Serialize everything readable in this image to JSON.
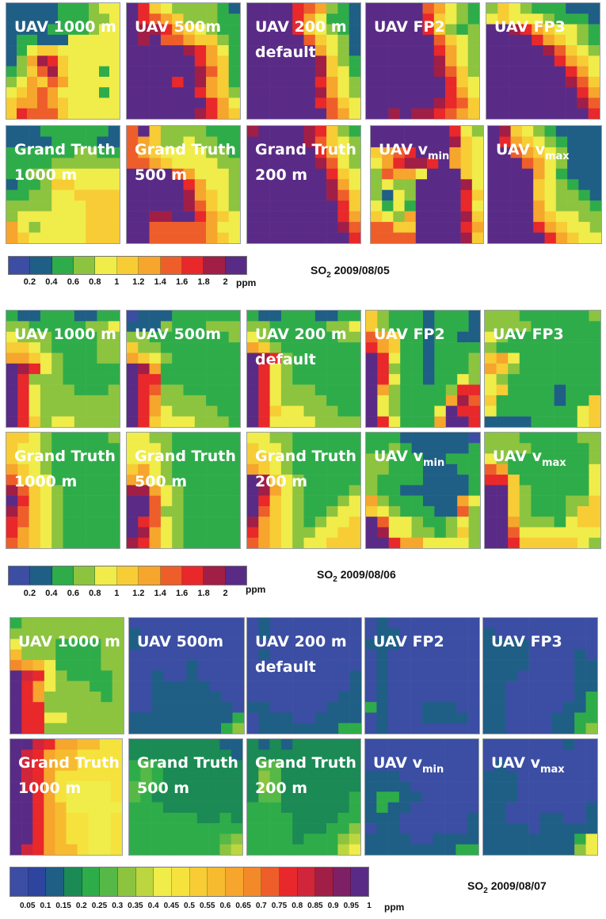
{
  "figure": {
    "sections": [
      {
        "title_species": "SO",
        "title_sub": "2",
        "title_date": "2009/08/05",
        "colorbar_unit": "ppm"
      },
      {
        "title_species": "SO",
        "title_sub": "2",
        "title_date": "2009/08/06",
        "colorbar_unit": "ppm"
      },
      {
        "title_species": "SO",
        "title_sub": "2",
        "title_date": "2009/08/07",
        "colorbar_unit": "ppm"
      }
    ]
  },
  "chart_data": [
    {
      "type": "heatmap",
      "title": "SO2 2009/08/05",
      "colorbar": {
        "unit": "ppm",
        "ticks": [
          "0.2",
          "0.4",
          "0.6",
          "0.8",
          "1",
          "1.2",
          "1.4",
          "1.6",
          "1.8",
          "2"
        ],
        "colors": [
          "#3b4ea3",
          "#1f5f86",
          "#2fac4a",
          "#8cc43f",
          "#f0ec4a",
          "#f7cc35",
          "#f6a52d",
          "#ee5e2a",
          "#e8282a",
          "#a11e46",
          "#5a2b86"
        ]
      },
      "panels": [
        {
          "label": "UAV 1000 m",
          "grid": [
            "11111222344",
            "11111222334",
            "11112222344",
            "12211144444",
            "12455444444",
            "13698544444",
            "23579544424",
            "34657644444",
            "45676444424",
            "56676544444",
            "58777544444"
          ]
        },
        {
          "label": "UAV 500m",
          "grid": [
            "A854333321",
            "A876533322",
            "A998654322",
            "A9A7765532",
            "AAAAA98642",
            "AAAAAA8652",
            "AAAAAA9752",
            "AAAA8A9652",
            "AAAAAA8653",
            "AAAAAAA864",
            "AAAAAA9865"
          ]
        },
        {
          "label": "UAV 200 m\ndefault",
          "grid": [
            "AAAA876321",
            "AAAA864221",
            "AAAA854321",
            "AAAAA75431",
            "AAAAAA6431",
            "AAAAAA9532",
            "AAAAAA9542",
            "AAAAAA8643",
            "AAAAAA9643",
            "AAAAAA8754",
            "AAAAAAA764"
          ]
        },
        {
          "label": "UAV FP2",
          "grid": [
            "AAAAA76432",
            "AAAAA85432",
            "AAAAA85323",
            "AAAAAA7543",
            "AAAAAA8643",
            "AAAAAA9643",
            "AAAAAA9753",
            "AAAAAAA854",
            "AAAAAAA864",
            "AAAAAA9875",
            "AA9A998765"
          ]
        },
        {
          "label": "UAV FP3",
          "grid": [
            "3543222111",
            "4544432221",
            "AA98654432",
            "AAAA865432",
            "AAAAA97543",
            "AAAAAA8654",
            "AAAAAAA864",
            "AAAAAAA975",
            "AAAAAAAA86",
            "AAAAAAAA97",
            "AAAAAAAAA8"
          ]
        },
        {
          "label": "Grand Truth\n1000 m",
          "grid": [
            "1112222221",
            "1111222211",
            "2222223322",
            "2222333333",
            "2233444444",
            "1223554444",
            "2233445555",
            "3333444555",
            "3444444555",
            "6434444555",
            "6544444555"
          ]
        },
        {
          "label": "Grand Truth\n500 m",
          "grid": [
            "7A53333222",
            "7653343322",
            "7654444332",
            "7765444433",
            "AAAA764443",
            "AAAAA86443",
            "AAAAA96543",
            "AAAAA97543",
            "AA99AA8654",
            "AA77777644",
            "AA77777654"
          ]
        },
        {
          "label": "Grand Truth\n200 m",
          "grid": [
            "9AAAA98532",
            "AAAAA97543",
            "AAAAAA8643",
            "AAAAAA9743",
            "AAAAAAA854",
            "AAAAAAA964",
            "AAAAAAA975",
            "AAAAAAAA85",
            "AAAAAAAA86",
            "AAAAAAAA97",
            "AAAAAAAAA8"
          ]
        },
        {
          "label": "UAV vmin",
          "grid": [
            "AAAAAAA843",
            "AAAAAAA954",
            "5678AAA654",
            "468998A654",
            "37664AAA54",
            "3433AAAA94",
            "3143AAAA85",
            "4242AAAA84",
            "5436AAAA95",
            "7755AAAA86",
            "7777AAAA95"
          ]
        },
        {
          "label": "UAV vmax",
          "grid": [
            "A954321111",
            "A865432111",
            "AA76543111",
            "AAA7643111",
            "AAAA642111",
            "AAAA543211",
            "AAAA543321",
            "AAAA643332",
            "AAAA654433",
            "AAAA865443",
            "AAAAA86544"
          ]
        }
      ]
    },
    {
      "type": "heatmap",
      "title": "SO2 2009/08/06",
      "colorbar": {
        "unit": "ppm",
        "ticks": [
          "0.2",
          "0.4",
          "0.6",
          "0.8",
          "1",
          "1.2",
          "1.4",
          "1.6",
          "1.8",
          "2"
        ],
        "colors": [
          "#3b4ea3",
          "#1f5f86",
          "#2fac4a",
          "#8cc43f",
          "#f0ec4a",
          "#f7cc35",
          "#f6a52d",
          "#ee5e2a",
          "#e8282a",
          "#a11e46",
          "#5a2b86"
        ]
      },
      "panels": [
        {
          "label": "UAV 1000 m",
          "grid": [
            "2112221122",
            "3322222334",
            "4333222233",
            "5543222233",
            "6654322233",
            "A984322222",
            "A833322222",
            "A843332223",
            "A843333333",
            "A843333333",
            "A853443333"
          ]
        },
        {
          "label": "UAV 500m",
          "grid": [
            "0111222222",
            "1113222333",
            "3322222223",
            "5332222222",
            "6543222222",
            "A962222222",
            "A882222222",
            "A873322222",
            "A863333222",
            "A864333322",
            "A854443332"
          ]
        },
        {
          "label": "UAV 200 m\ndefault",
          "grid": [
            "2112221122",
            "3322222334",
            "4322222233",
            "6532222222",
            "A983222222",
            "A843222222",
            "A843222222",
            "A843332222",
            "A843333222",
            "A854433322",
            "A844443333"
          ]
        },
        {
          "label": "UAV FP2",
          "grid": [
            "5322212221",
            "5322212221",
            "7652212211",
            "8652212222",
            "A842212223",
            "A832212223",
            "A842212243",
            "A632222388",
            "A432222697",
            "A432224A88",
            "A842226AA8"
          ]
        },
        {
          "label": "UAV FP3",
          "grid": [
            "3332222223",
            "3333222222",
            "4322222222",
            "3222222222",
            "5642222222",
            "6532222222",
            "4322222222",
            "4522221222",
            "5222221225",
            "4222222245",
            "1111222245"
          ]
        },
        {
          "label": "Grand Truth\n1000 m",
          "grid": [
            "5543222223",
            "5443222222",
            "5443222222",
            "6543222222",
            "7544222222",
            "9754322222",
            "A854322222",
            "9754322222",
            "8754322222",
            "8654322222",
            "7654322222"
          ]
        },
        {
          "label": "Grand Truth\n500 m",
          "grid": [
            "4433222222",
            "4443222222",
            "4443222222",
            "5643222222",
            "6643222222",
            "9964322222",
            "AA74322222",
            "AA73322222",
            "A874322222",
            "A964322222",
            "9864322222"
          ]
        },
        {
          "label": "Grand Truth\n200 m",
          "grid": [
            "4433222222",
            "5443222222",
            "5543222222",
            "6543222222",
            "A954322222",
            "A964322223",
            "A854322234",
            "A754322344",
            "9654323445",
            "8654334455",
            "7654344555"
          ]
        },
        {
          "label": "UAV vmin",
          "grid": [
            "2221111110",
            "2232111112",
            "3322211222",
            "3322211122",
            "3222211112",
            "3221111112",
            "6322211164",
            "5432221173",
            "A744322343",
            "A944332353",
            "AA86644443"
          ]
        },
        {
          "label": "UAV vmax",
          "grid": [
            "3332222233",
            "3333222223",
            "4322222223",
            "7622222224",
            "8852222224",
            "AA53222224",
            "AA53222335",
            "AA53222355",
            "AA63332455",
            "AA74444444",
            "AA85555543"
          ]
        }
      ]
    },
    {
      "type": "heatmap",
      "title": "SO2 2009/08/07",
      "colorbar": {
        "unit": "ppm",
        "ticks": [
          "0.05",
          "0.1",
          "0.15",
          "0.2",
          "0.25",
          "0.3",
          "0.35",
          "0.4",
          "0.45",
          "0.5",
          "0.55",
          "0.6",
          "0.65",
          "0.7",
          "0.75",
          "0.8",
          "0.85",
          "0.9",
          "0.95",
          "1"
        ],
        "colors": [
          "#3b4ea3",
          "#2e45a0",
          "#1f5f86",
          "#1b8a55",
          "#2fac4a",
          "#56b847",
          "#8cc43f",
          "#bcd640",
          "#f0ec4a",
          "#f5e23c",
          "#f7cc35",
          "#f7bb30",
          "#f6a52d",
          "#f38a2a",
          "#ee5e2a",
          "#e8282a",
          "#d0253a",
          "#a11e46",
          "#7d2065",
          "#5a2b86"
        ]
      },
      "panels": [
        {
          "label": "UAV 1000 m",
          "grid": [
            "4666666666",
            "6666666666",
            "8666444466",
            "B666444466",
            "DCB8444466",
            "JGF8644446",
            "JFC8666446",
            "JFC6666646",
            "JFF6666666",
            "JFF8866666",
            "JFF6666666"
          ]
        },
        {
          "label": "UAV 500m",
          "grid": [
            "0000000000",
            "2000000000",
            "2000000000",
            "0000000000",
            "0000020000",
            "0020020000",
            "0022222000",
            "0022222200",
            "0022222220",
            "2222222224",
            "2222222246"
          ]
        },
        {
          "label": "UAV 200 m\ndefault",
          "grid": [
            "0200000000",
            "0200000000",
            "0000000000",
            "0200000000",
            "0000000000",
            "0000000002",
            "0000000002",
            "0000000022",
            "2200000222",
            "0222002222",
            "0222222244"
          ]
        },
        {
          "label": "UAV FP2",
          "grid": [
            "0200000000",
            "0220000000",
            "2220000000",
            "0200000000",
            "0200000000",
            "0200000000",
            "0200000000",
            "0200000000",
            "4200022200",
            "0200022220",
            "0200000000"
          ]
        },
        {
          "label": "UAV FP3",
          "grid": [
            "0000000000",
            "2000000000",
            "2222000000",
            "2222000020",
            "2222000022",
            "2220000022",
            "2200000022",
            "2200000024",
            "2200000224",
            "2200002244",
            "2200002246"
          ]
        },
        {
          "label": "Grand Truth\n1000 m",
          "grid": [
            "JJGFCCBB99",
            "JGFCBB9999",
            "JGFCBB9999",
            "JGFC999999",
            "JGFC988889",
            "JJFC988889",
            "JJFCB88888",
            "JJFCB99889",
            "JJFCB99889",
            "JJFCB99889",
            "JGFCBB9889"
          ]
        },
        {
          "label": "Grand Truth\n500 m",
          "grid": [
            "3333333322",
            "3333333332",
            "4543333333",
            "4543333333",
            "5543333333",
            "5433333333",
            "4443333333",
            "4444443343",
            "4444444444",
            "4444444456",
            "4444444467"
          ]
        },
        {
          "label": "Grand Truth\n200 m",
          "grid": [
            "3232333333",
            "3333333333",
            "3553333333",
            "3653333333",
            "3653333333",
            "3553333334",
            "4443333334",
            "4444333344",
            "4444333446",
            "4444344467",
            "4444444478"
          ]
        },
        {
          "label": "UAV vmin",
          "grid": [
            "0000000000",
            "0000000000",
            "0000000000",
            "2220000000",
            "2222000000",
            "2442200000",
            "2422000000",
            "2220000002",
            "0220000002",
            "2222002222",
            "2222222244"
          ]
        },
        {
          "label": "UAV vmax",
          "grid": [
            "0000000200",
            "0000000000",
            "0200000000",
            "2220000000",
            "2220000000",
            "2220000000",
            "2200000002",
            "2200022002",
            "2222022222",
            "2222222248",
            "2222222268"
          ]
        }
      ]
    }
  ]
}
